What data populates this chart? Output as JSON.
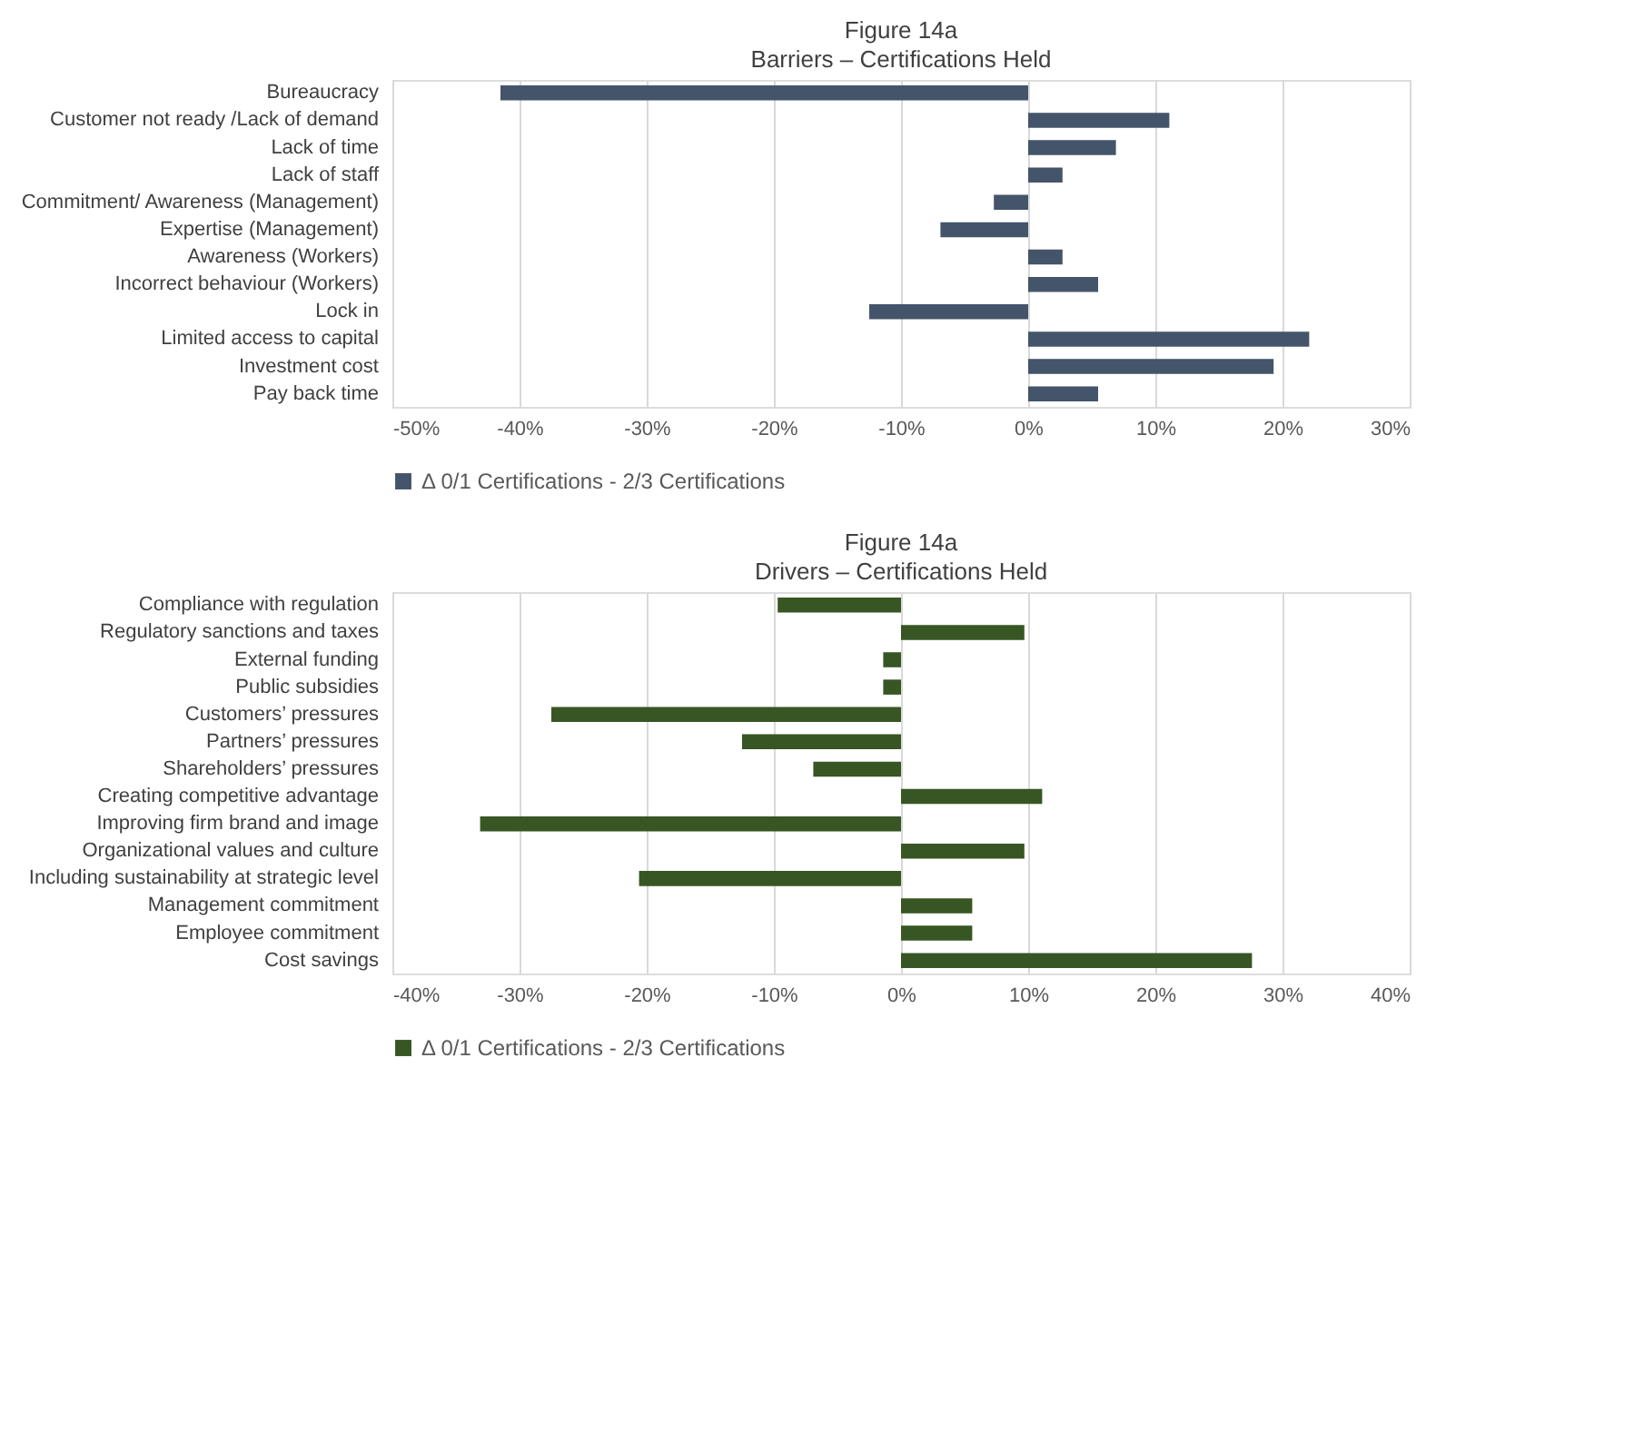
{
  "chart_data": [
    {
      "type": "bar",
      "orientation": "horizontal",
      "title": "Figure 14a",
      "subtitle": "Barriers – Certifications Held",
      "categories": [
        "Bureaucracy",
        "Customer not ready /Lack of demand",
        "Lack of time",
        "Lack of staff",
        "Commitment/ Awareness (Management)",
        "Expertise (Management)",
        "Awareness (Workers)",
        "Incorrect behaviour (Workers)",
        "Lock in",
        "Limited access to capital",
        "Investment cost",
        "Pay back time"
      ],
      "series": [
        {
          "name": "Δ  0/1 Certifications - 2/3 Certifications",
          "color": "#44546a",
          "values": [
            -41.5,
            11.1,
            6.9,
            2.7,
            -2.7,
            -6.9,
            2.7,
            5.5,
            -12.5,
            22.1,
            19.3,
            5.5
          ]
        }
      ],
      "xlim": [
        -50,
        30
      ],
      "xticks": [
        {
          "value": -50,
          "label": "-50%"
        },
        {
          "value": -40,
          "label": "-40%"
        },
        {
          "value": -30,
          "label": "-30%"
        },
        {
          "value": -20,
          "label": "-20%"
        },
        {
          "value": -10,
          "label": "-10%"
        },
        {
          "value": 0,
          "label": "0%"
        },
        {
          "value": 10,
          "label": "10%"
        },
        {
          "value": 20,
          "label": "20%"
        },
        {
          "value": 30,
          "label": "30%"
        }
      ],
      "grid": "x",
      "legend": "bottom"
    },
    {
      "type": "bar",
      "orientation": "horizontal",
      "title": "Figure 14a",
      "subtitle": "Drivers – Certifications Held",
      "categories": [
        "Compliance with regulation",
        "Regulatory sanctions and taxes",
        "External funding",
        "Public subsidies",
        "Customers’ pressures",
        "Partners’ pressures",
        "Shareholders’ pressures",
        "Creating competitive advantage",
        "Improving firm brand and image",
        "Organizational values and culture",
        "Including sustainability at strategic level",
        "Management commitment",
        "Employee commitment",
        "Cost savings"
      ],
      "series": [
        {
          "name": "Δ  0/1 Certifications - 2/3 Certifications",
          "color": "#375623",
          "values": [
            -9.7,
            9.7,
            -1.4,
            -1.4,
            -27.5,
            -12.5,
            -6.9,
            11.1,
            -33.1,
            9.7,
            -20.6,
            5.6,
            5.6,
            27.6
          ]
        }
      ],
      "xlim": [
        -40,
        40
      ],
      "xticks": [
        {
          "value": -40,
          "label": "-40%"
        },
        {
          "value": -30,
          "label": "-30%"
        },
        {
          "value": -20,
          "label": "-20%"
        },
        {
          "value": -10,
          "label": "-10%"
        },
        {
          "value": 0,
          "label": "0%"
        },
        {
          "value": 10,
          "label": "10%"
        },
        {
          "value": 20,
          "label": "20%"
        },
        {
          "value": 30,
          "label": "30%"
        },
        {
          "value": 40,
          "label": "40%"
        }
      ],
      "grid": "x",
      "legend": "bottom"
    }
  ]
}
